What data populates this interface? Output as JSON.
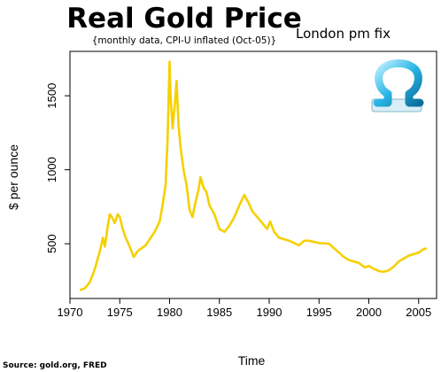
{
  "chart_data": {
    "type": "line",
    "title": "Real Gold Price",
    "subtitle": "{monthly data, CPI-U inflated (Oct-05)}",
    "annotation": "London pm fix",
    "source": "Source: gold.org, FRED",
    "xlabel": "Time",
    "ylabel": "$ per ounce",
    "xlim": [
      1970,
      2006.8
    ],
    "ylim": [
      130,
      1800
    ],
    "x_ticks": [
      1970,
      1975,
      1980,
      1985,
      1990,
      1995,
      2000,
      2005
    ],
    "y_ticks": [
      500,
      1000,
      1500
    ],
    "grid": false,
    "line_color": "#f5d000",
    "logo": "omega-logo-icon",
    "series": [
      {
        "x": [
          1971.0,
          1971.5,
          1972.0,
          1972.5,
          1973.0,
          1973.3,
          1973.5,
          1973.8,
          1974.0,
          1974.2,
          1974.5,
          1974.8,
          1975.0,
          1975.3,
          1975.6,
          1976.0,
          1976.4,
          1976.8,
          1977.2,
          1977.6,
          1978.0,
          1978.5,
          1979.0,
          1979.3,
          1979.6,
          1979.8,
          1980.0,
          1980.1,
          1980.3,
          1980.5,
          1980.7,
          1980.9,
          1981.1,
          1981.4,
          1981.7,
          1982.0,
          1982.3,
          1982.6,
          1982.9,
          1983.1,
          1983.4,
          1983.7,
          1984.0,
          1984.5,
          1985.0,
          1985.5,
          1986.0,
          1986.5,
          1987.0,
          1987.5,
          1987.9,
          1988.3,
          1988.8,
          1989.3,
          1989.8,
          1990.1,
          1990.5,
          1991.0,
          1992.0,
          1993.0,
          1993.5,
          1994.0,
          1995.0,
          1996.0,
          1997.0,
          1997.5,
          1998.0,
          1998.5,
          1999.0,
          1999.6,
          2000.0,
          2000.5,
          2001.0,
          2001.5,
          2002.0,
          2002.5,
          2003.0,
          2003.5,
          2004.0,
          2004.5,
          2005.0,
          2005.4,
          2005.8
        ],
        "y": [
          185,
          200,
          240,
          330,
          450,
          540,
          480,
          620,
          700,
          680,
          640,
          700,
          680,
          600,
          540,
          480,
          410,
          450,
          470,
          490,
          530,
          580,
          650,
          760,
          900,
          1200,
          1730,
          1500,
          1280,
          1420,
          1600,
          1300,
          1150,
          1000,
          900,
          730,
          680,
          780,
          860,
          950,
          880,
          850,
          760,
          700,
          600,
          580,
          620,
          680,
          760,
          830,
          780,
          720,
          680,
          640,
          600,
          650,
          580,
          540,
          520,
          490,
          520,
          520,
          505,
          500,
          440,
          410,
          390,
          380,
          370,
          340,
          350,
          330,
          315,
          310,
          320,
          345,
          380,
          400,
          420,
          430,
          440,
          460,
          470
        ]
      }
    ]
  }
}
